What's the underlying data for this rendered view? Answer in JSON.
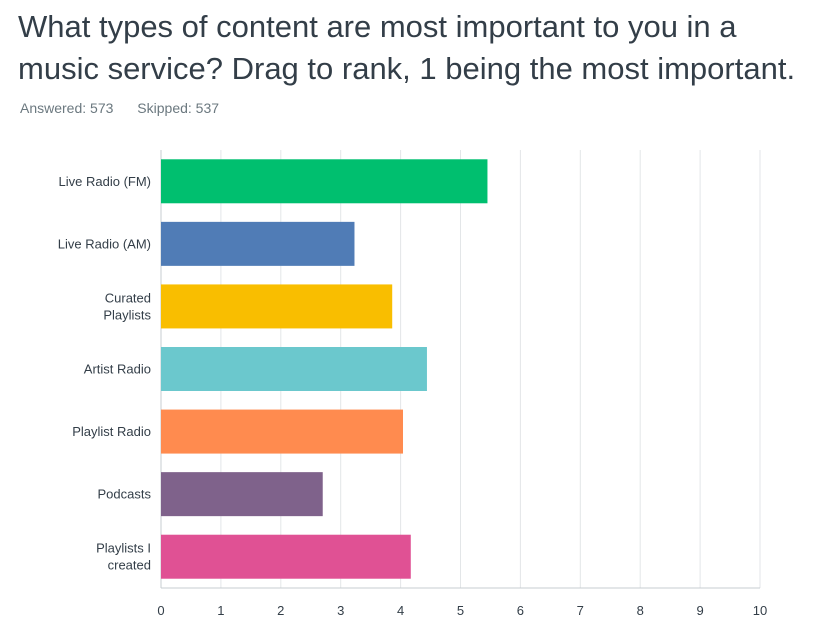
{
  "question": {
    "title": "What types of content are most important to you in a music service? Drag to rank, 1 being the most important.",
    "answered": "Answered: 573",
    "skipped": "Skipped: 537"
  },
  "chart_data": {
    "type": "bar",
    "orientation": "horizontal",
    "categories": [
      [
        "Live Radio (FM)"
      ],
      [
        "Live Radio (AM)"
      ],
      [
        "Curated",
        "Playlists"
      ],
      [
        "Artist Radio"
      ],
      [
        "Playlist Radio"
      ],
      [
        "Podcasts"
      ],
      [
        "Playlists I",
        "created"
      ]
    ],
    "values": [
      5.45,
      3.23,
      3.86,
      4.44,
      4.04,
      2.7,
      4.17
    ],
    "colors": [
      "#00bf6f",
      "#507cb6",
      "#f9be00",
      "#6bc8cd",
      "#ff8b4f",
      "#7f628b",
      "#e05194"
    ],
    "xlim": [
      0,
      10
    ],
    "xticks": [
      "0",
      "1",
      "2",
      "3",
      "4",
      "5",
      "6",
      "7",
      "8",
      "9",
      "10"
    ],
    "grid": true
  }
}
